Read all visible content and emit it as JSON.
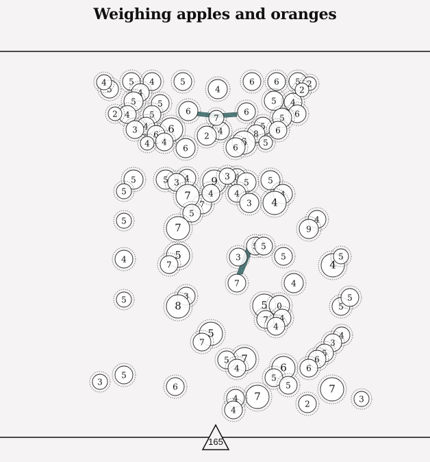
{
  "title": "Weighing apples and oranges",
  "footer": {
    "count_label": "165"
  },
  "colors": {
    "background": "#f5f3f3",
    "node_fill": "#ffffff",
    "node_stroke": "#222222",
    "halo_stroke": "#555555",
    "connector": "#4f7a7a",
    "rule": "#111111"
  },
  "nodes": [
    "5",
    "5",
    "4",
    "5",
    "4",
    "6",
    "6",
    "5",
    "4",
    "5",
    "5",
    "5",
    "4",
    "4",
    "5",
    "6",
    "6",
    "6",
    "5",
    "4",
    "6",
    "3",
    "6",
    "5",
    "6",
    "8",
    "4",
    "2",
    "6",
    "6",
    "4",
    "6",
    "2",
    "4",
    "4",
    "5",
    "7",
    "5",
    "5",
    "4",
    "3",
    "5",
    "6",
    "5",
    "5",
    "9",
    "3",
    "4",
    "4",
    "7",
    "7",
    "4",
    "4",
    "3",
    "5",
    "5",
    "7",
    "4",
    "9",
    "5",
    "5",
    "5",
    "3",
    "5",
    "7",
    "4",
    "5",
    "4",
    "7",
    "4",
    "3",
    "5",
    "8",
    "5",
    "0",
    "7",
    "4",
    "4",
    "5",
    "5",
    "4",
    "3",
    "5",
    "7",
    "5",
    "6",
    "7",
    "5",
    "4",
    "6",
    "6",
    "5",
    "5",
    "7",
    "3",
    "5",
    "6",
    "7",
    "4",
    "4",
    "2",
    "3",
    "2",
    "2",
    "2"
  ]
}
